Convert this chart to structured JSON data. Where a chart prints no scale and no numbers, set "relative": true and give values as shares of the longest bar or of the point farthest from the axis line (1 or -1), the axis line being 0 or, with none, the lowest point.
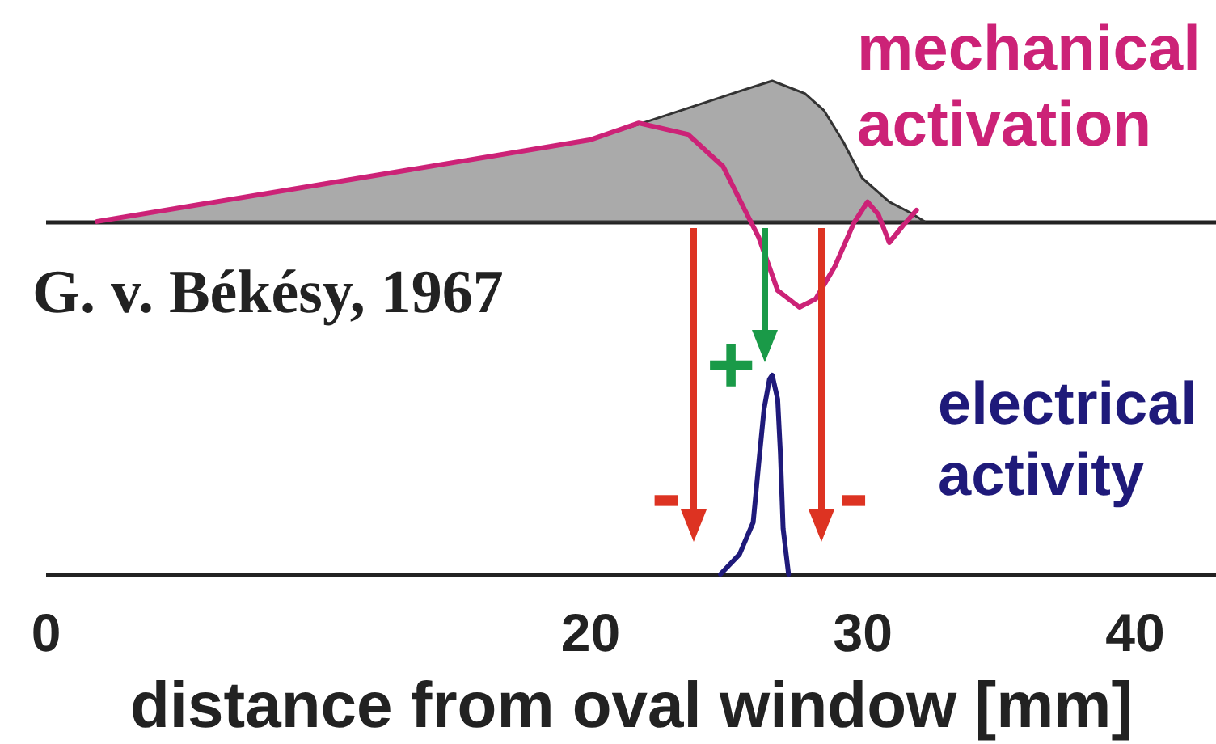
{
  "chart_data": [
    {
      "type": "line",
      "relative": true,
      "xlim": [
        0,
        43
      ],
      "tick_labels": false,
      "annotations": [
        "G. v. Békésy, 1967"
      ],
      "series": [
        {
          "type": "area",
          "color": "#aaaaaa",
          "x": [
            1.9,
            20.0,
            22.1,
            25.4,
            26.7,
            27.9,
            28.6,
            29.3,
            30.0,
            31.0,
            31.8,
            32.3
          ],
          "values": [
            0,
            0.58,
            0.71,
            0.92,
            1,
            0.91,
            0.79,
            0.57,
            0.31,
            0.14,
            0.06,
            0
          ]
        },
        {
          "name": "mechanical activation",
          "color": "#cc2277",
          "x": [
            1.9,
            20.0,
            21.8,
            23.6,
            24.9,
            25.7,
            26.2,
            26.9,
            27.7,
            28.3,
            29.0,
            29.7,
            30.2,
            30.6,
            31.0,
            31.5,
            32.0
          ],
          "values": [
            0,
            0.58,
            0.7,
            0.62,
            0.39,
            0.08,
            -0.11,
            -0.49,
            -0.61,
            -0.55,
            -0.32,
            -0.01,
            0.14,
            0.05,
            -0.15,
            -0.03,
            0.08
          ]
        }
      ]
    },
    {
      "type": "line",
      "relative": true,
      "xlim": [
        0,
        43
      ],
      "xticks": [
        0,
        20,
        30,
        40
      ],
      "xlabel": "distance from oval window [mm]",
      "annotations": [
        "+",
        "-",
        "-"
      ],
      "series": [
        {
          "name": "electrical activity",
          "color": "#1f1a7a",
          "x": [
            24.8,
            25.5,
            26.0,
            26.2,
            26.4,
            26.6,
            26.7,
            26.9,
            27.0,
            27.1,
            27.3
          ],
          "values": [
            0,
            0.1,
            0.26,
            0.55,
            0.83,
            0.98,
            1,
            0.88,
            0.61,
            0.23,
            0
          ]
        }
      ]
    }
  ]
}
